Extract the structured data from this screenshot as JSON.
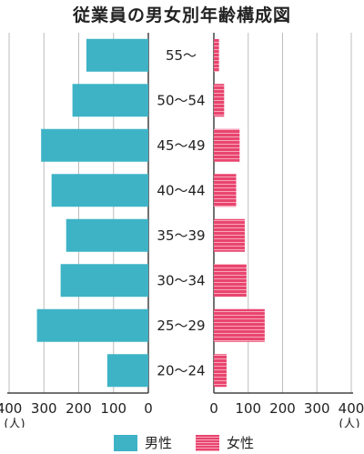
{
  "chart_data": {
    "type": "bar",
    "title": "従業員の男女別年齢構成図",
    "categories": [
      "55～",
      "50～54",
      "45～49",
      "40～44",
      "35～39",
      "30～34",
      "25～29",
      "20～24"
    ],
    "series": [
      {
        "name": "男性",
        "values": [
          178,
          218,
          308,
          278,
          236,
          252,
          320,
          118
        ]
      },
      {
        "name": "女性",
        "values": [
          15,
          30,
          75,
          65,
          90,
          95,
          148,
          37
        ]
      }
    ],
    "x_ticks": [
      "400",
      "300",
      "200",
      "100",
      "0"
    ],
    "x_ticks_right": [
      "0",
      "100",
      "200",
      "300",
      "400"
    ],
    "xlim": [
      0,
      400
    ],
    "unit_label": "(人)",
    "grid": true,
    "legend_position": "bottom",
    "colors": {
      "male": "#3eb3c6",
      "female": "#e8456f",
      "female_stripe": "#f7a7bb",
      "grid": "#bdbdbd"
    }
  }
}
